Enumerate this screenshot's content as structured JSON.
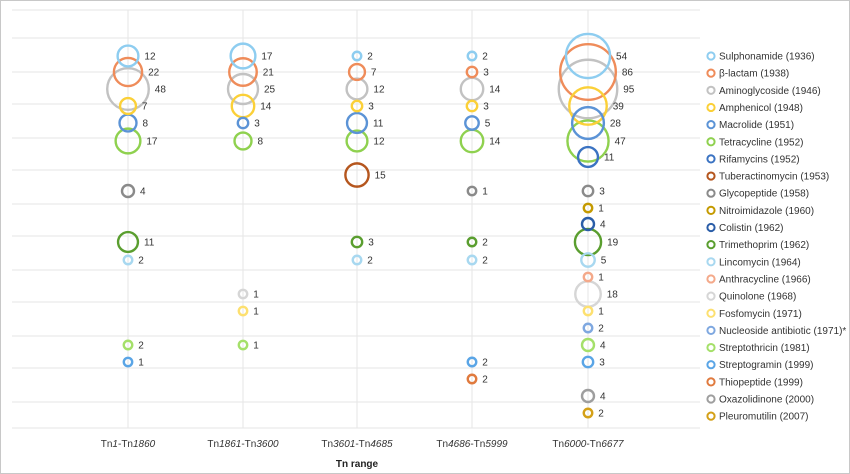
{
  "chart_data": {
    "type": "bubble",
    "xlabel": "Tn range",
    "categories": [
      "Tn1-Tn1860",
      "Tn1861-Tn3600",
      "Tn3601-Tn4685",
      "Tn4686-Tn5999",
      "Tn6000-Tn6677"
    ],
    "x_tick_parts": [
      [
        {
          "t": "Tn",
          "i": false
        },
        {
          "t": "1",
          "i": true
        },
        {
          "t": "-Tn",
          "i": false
        },
        {
          "t": "1860",
          "i": true
        }
      ],
      [
        {
          "t": "Tn",
          "i": false
        },
        {
          "t": "1861",
          "i": true
        },
        {
          "t": "-Tn",
          "i": false
        },
        {
          "t": "3600",
          "i": true
        }
      ],
      [
        {
          "t": "Tn",
          "i": false
        },
        {
          "t": "3601",
          "i": true
        },
        {
          "t": "-Tn",
          "i": false
        },
        {
          "t": "4685",
          "i": true
        }
      ],
      [
        {
          "t": "Tn",
          "i": false
        },
        {
          "t": "4686",
          "i": true
        },
        {
          "t": "-Tn",
          "i": false
        },
        {
          "t": "5999",
          "i": true
        }
      ],
      [
        {
          "t": "Tn",
          "i": false
        },
        {
          "t": "6000",
          "i": true
        },
        {
          "t": "-Tn",
          "i": false
        },
        {
          "t": "6677",
          "i": true
        }
      ]
    ],
    "grid": true,
    "legend_position": "right",
    "series": [
      {
        "name": "Sulphonamide (1936)",
        "color": "#8ecdf0",
        "values": [
          12,
          17,
          2,
          2,
          54
        ]
      },
      {
        "name": "β-lactam (1938)",
        "color": "#ef8c5a",
        "values": [
          22,
          21,
          7,
          3,
          86
        ]
      },
      {
        "name": "Aminoglycoside (1946)",
        "color": "#c2c2c2",
        "values": [
          48,
          25,
          12,
          14,
          95
        ]
      },
      {
        "name": "Amphenicol (1948)",
        "color": "#fbd038",
        "values": [
          7,
          14,
          3,
          3,
          39
        ]
      },
      {
        "name": "Macrolide (1951)",
        "color": "#5b93d6",
        "values": [
          8,
          3,
          11,
          5,
          28
        ]
      },
      {
        "name": "Tetracycline (1952)",
        "color": "#8fd14f",
        "values": [
          17,
          8,
          12,
          14,
          47
        ]
      },
      {
        "name": "Rifamycins (1952)",
        "color": "#3b73c2",
        "values": [
          null,
          null,
          null,
          null,
          11
        ]
      },
      {
        "name": "Tuberactinomycin (1953)",
        "color": "#b5561e",
        "values": [
          null,
          null,
          15,
          null,
          null
        ]
      },
      {
        "name": "Glycopeptide (1958)",
        "color": "#8a8a8a",
        "values": [
          4,
          null,
          null,
          1,
          3
        ]
      },
      {
        "name": "Nitroimidazole (1960)",
        "color": "#c49a00",
        "values": [
          null,
          null,
          null,
          null,
          1
        ]
      },
      {
        "name": "Colistin (1962)",
        "color": "#2b5ea8",
        "values": [
          null,
          null,
          null,
          null,
          4
        ]
      },
      {
        "name": "Trimethoprim (1962)",
        "color": "#5a9e2f",
        "values": [
          11,
          null,
          3,
          2,
          19
        ]
      },
      {
        "name": "Lincomycin (1964)",
        "color": "#a8d8f0",
        "values": [
          2,
          null,
          2,
          2,
          5
        ]
      },
      {
        "name": "Anthracycline (1966)",
        "color": "#f4a98a",
        "values": [
          null,
          null,
          null,
          null,
          1
        ]
      },
      {
        "name": "Quinolone (1968)",
        "color": "#d6d6d6",
        "values": [
          null,
          1,
          null,
          null,
          18
        ]
      },
      {
        "name": "Fosfomycin (1971)",
        "color": "#fde070",
        "values": [
          null,
          1,
          null,
          null,
          1
        ]
      },
      {
        "name": "Nucleoside antibiotic (1971)*",
        "color": "#7fa8e0",
        "values": [
          null,
          null,
          null,
          null,
          2
        ]
      },
      {
        "name": "Streptothricin (1981)",
        "color": "#a5e06a",
        "values": [
          2,
          1,
          null,
          null,
          4
        ]
      },
      {
        "name": "Streptogramin (1999)",
        "color": "#5aa5e6",
        "values": [
          1,
          null,
          null,
          2,
          3
        ]
      },
      {
        "name": "Thiopeptide (1999)",
        "color": "#e07a3e",
        "values": [
          null,
          null,
          null,
          2,
          null
        ]
      },
      {
        "name": "Oxazolidinone (2000)",
        "color": "#9e9e9e",
        "values": [
          null,
          null,
          null,
          null,
          4
        ]
      },
      {
        "name": "Pleuromutilin (2007)",
        "color": "#d4a017",
        "values": [
          null,
          null,
          null,
          null,
          2
        ]
      }
    ]
  }
}
